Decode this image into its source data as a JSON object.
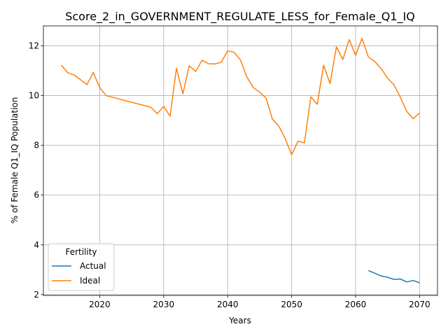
{
  "chart_data": {
    "type": "line",
    "title": "Score_2_in_GOVERNMENT_REGULATE_LESS_for_Female_Q1_IQ",
    "xlabel": "Years",
    "ylabel": "% of Female Q1_IQ Population",
    "xlim": [
      2011.2,
      2072.8
    ],
    "ylim": [
      1.97,
      12.8
    ],
    "xticks": [
      2020,
      2030,
      2040,
      2050,
      2060,
      2070
    ],
    "yticks": [
      2,
      4,
      6,
      8,
      10,
      12
    ],
    "grid": true,
    "legend": {
      "title": "Fertility",
      "placement": "lower-left"
    },
    "series": [
      {
        "name": "Actual",
        "color": "#1f77b4",
        "x": [
          2062,
          2063,
          2064,
          2065,
          2066,
          2067,
          2068,
          2069,
          2070
        ],
        "y": [
          2.97,
          2.86,
          2.75,
          2.7,
          2.61,
          2.63,
          2.51,
          2.57,
          2.48
        ]
      },
      {
        "name": "Ideal",
        "color": "#ff7f0e",
        "x": [
          2014,
          2015,
          2016,
          2017,
          2018,
          2019,
          2020,
          2021,
          2028,
          2029,
          2030,
          2031,
          2032,
          2033,
          2034,
          2035,
          2036,
          2037,
          2038,
          2039,
          2040,
          2041,
          2042,
          2043,
          2044,
          2045,
          2046,
          2047,
          2048,
          2049,
          2050,
          2051,
          2052,
          2053,
          2054,
          2055,
          2056,
          2057,
          2058,
          2059,
          2060,
          2061,
          2062,
          2063,
          2064,
          2065,
          2066,
          2067,
          2068,
          2069,
          2070
        ],
        "y": [
          11.22,
          10.92,
          10.83,
          10.64,
          10.44,
          10.93,
          10.32,
          10.0,
          9.53,
          9.27,
          9.57,
          9.17,
          11.1,
          10.07,
          11.2,
          10.97,
          11.42,
          11.28,
          11.27,
          11.34,
          11.8,
          11.74,
          11.43,
          10.75,
          10.32,
          10.14,
          9.9,
          9.05,
          8.77,
          8.27,
          7.62,
          8.17,
          8.1,
          9.95,
          9.65,
          11.22,
          10.48,
          11.96,
          11.45,
          12.25,
          11.62,
          12.3,
          11.55,
          11.37,
          11.08,
          10.7,
          10.43,
          9.93,
          9.36,
          9.07,
          9.3
        ]
      }
    ]
  }
}
